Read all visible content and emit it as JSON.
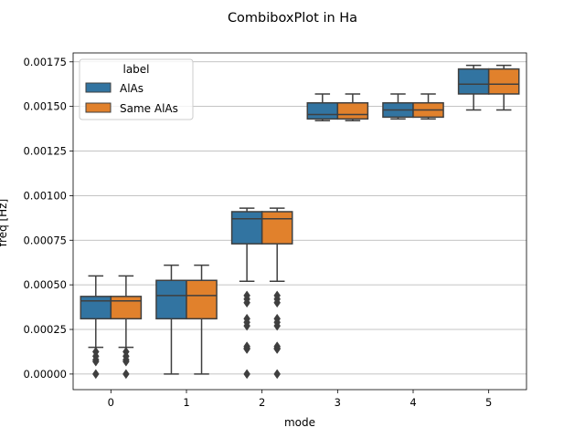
{
  "chart_data": {
    "type": "box",
    "title": "CombiboxPlot in Ha",
    "xlabel": "mode",
    "ylabel": "freq [Hz]",
    "categories": [
      "0",
      "1",
      "2",
      "3",
      "4",
      "5"
    ],
    "ylim": [
      -8.75e-05,
      0.0018
    ],
    "yticks": [
      0.0,
      0.00025,
      0.0005,
      0.00075,
      0.001,
      0.00125,
      0.0015,
      0.00175
    ],
    "ytick_labels": [
      "0.00000",
      "0.00025",
      "0.00050",
      "0.00075",
      "0.00100",
      "0.00125",
      "0.00150",
      "0.00175"
    ],
    "grid": "horizontal",
    "legend": {
      "title": "label",
      "placement": "top-left"
    },
    "series": [
      {
        "name": "AlAs",
        "color": "#3274a1",
        "boxes": [
          {
            "whisker_low": 0.00015,
            "q1": 0.00031,
            "median": 0.00041,
            "q3": 0.000435,
            "whisker_high": 0.00055,
            "outliers": [
              0.000125,
              0.0001,
              8e-05,
              7e-05,
              0.0
            ]
          },
          {
            "whisker_low": 0.0,
            "q1": 0.00031,
            "median": 0.00044,
            "q3": 0.000525,
            "whisker_high": 0.00061,
            "outliers": []
          },
          {
            "whisker_low": 0.00052,
            "q1": 0.00073,
            "median": 0.00087,
            "q3": 0.00091,
            "whisker_high": 0.00093,
            "outliers": [
              0.00044,
              0.00042,
              0.0004,
              0.00031,
              0.00029,
              0.00027,
              0.000155,
              0.000145,
              0.00014,
              0.0
            ]
          },
          {
            "whisker_low": 0.00142,
            "q1": 0.00143,
            "median": 0.001455,
            "q3": 0.00152,
            "whisker_high": 0.00157,
            "outliers": []
          },
          {
            "whisker_low": 0.00143,
            "q1": 0.00144,
            "median": 0.00148,
            "q3": 0.00152,
            "whisker_high": 0.00157,
            "outliers": []
          },
          {
            "whisker_low": 0.00148,
            "q1": 0.00157,
            "median": 0.001625,
            "q3": 0.00171,
            "whisker_high": 0.00173,
            "outliers": []
          }
        ]
      },
      {
        "name": "Same AlAs",
        "color": "#e1812c",
        "boxes": [
          {
            "whisker_low": 0.00015,
            "q1": 0.00031,
            "median": 0.00041,
            "q3": 0.000435,
            "whisker_high": 0.00055,
            "outliers": [
              0.000125,
              0.0001,
              8e-05,
              7e-05,
              0.0
            ]
          },
          {
            "whisker_low": 0.0,
            "q1": 0.00031,
            "median": 0.00044,
            "q3": 0.000525,
            "whisker_high": 0.00061,
            "outliers": []
          },
          {
            "whisker_low": 0.00052,
            "q1": 0.00073,
            "median": 0.00087,
            "q3": 0.00091,
            "whisker_high": 0.00093,
            "outliers": [
              0.00044,
              0.00042,
              0.0004,
              0.00031,
              0.00029,
              0.00027,
              0.000155,
              0.000145,
              0.00014,
              0.0
            ]
          },
          {
            "whisker_low": 0.00142,
            "q1": 0.00143,
            "median": 0.001455,
            "q3": 0.00152,
            "whisker_high": 0.00157,
            "outliers": []
          },
          {
            "whisker_low": 0.00143,
            "q1": 0.00144,
            "median": 0.00148,
            "q3": 0.00152,
            "whisker_high": 0.00157,
            "outliers": []
          },
          {
            "whisker_low": 0.00148,
            "q1": 0.00157,
            "median": 0.001625,
            "q3": 0.00171,
            "whisker_high": 0.00173,
            "outliers": []
          }
        ]
      }
    ]
  }
}
